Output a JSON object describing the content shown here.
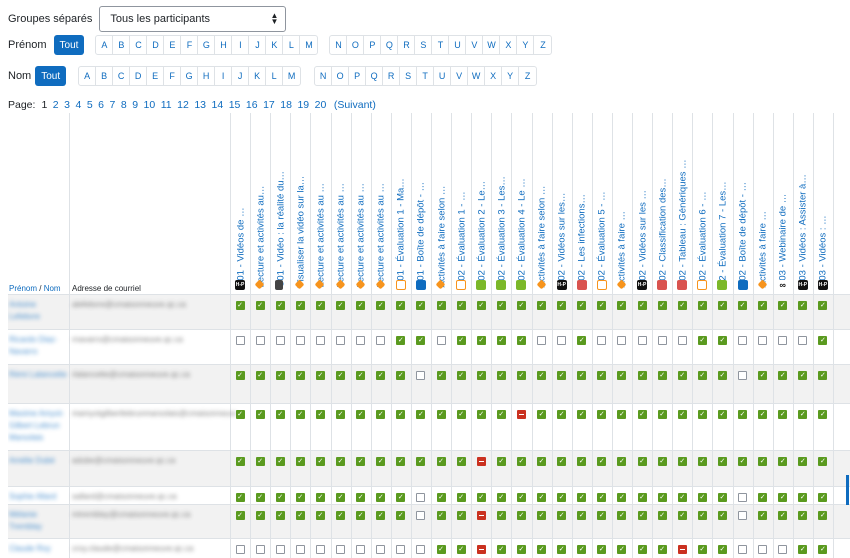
{
  "group": {
    "label": "Groupes séparés",
    "selected": "Tous les participants"
  },
  "firstname_filter": {
    "label": "Prénom",
    "all_label": "Tout",
    "letters_a": [
      "A",
      "B",
      "C",
      "D",
      "E",
      "F",
      "G",
      "H",
      "I",
      "J",
      "K",
      "L",
      "M"
    ],
    "letters_b": [
      "N",
      "O",
      "P",
      "Q",
      "R",
      "S",
      "T",
      "U",
      "V",
      "W",
      "X",
      "Y",
      "Z"
    ]
  },
  "lastname_filter": {
    "label": "Nom",
    "all_label": "Tout",
    "letters_a": [
      "A",
      "B",
      "C",
      "D",
      "E",
      "F",
      "G",
      "H",
      "I",
      "J",
      "K",
      "L",
      "M"
    ],
    "letters_b": [
      "N",
      "O",
      "P",
      "Q",
      "R",
      "S",
      "T",
      "U",
      "V",
      "W",
      "X",
      "Y",
      "Z"
    ]
  },
  "pagination": {
    "label": "Page:",
    "current": "1",
    "pages": [
      "1",
      "2",
      "3",
      "4",
      "5",
      "6",
      "7",
      "8",
      "9",
      "10",
      "11",
      "12",
      "13",
      "14",
      "15",
      "16",
      "17",
      "18",
      "19",
      "20"
    ],
    "next_label": "(Suivant)"
  },
  "table_header": {
    "firstname": "Prénom",
    "separator": " / ",
    "lastname": "Nom",
    "email": "Adresse de courriel"
  },
  "activities": [
    {
      "name": "C01 - Vidéos de …",
      "icon": "h5p-icon"
    },
    {
      "name": "Lecture et activités au…",
      "icon": "tag-icon"
    },
    {
      "name": "C01 - Vidéo : la réalité du…",
      "icon": "page-icon"
    },
    {
      "name": "Visualiser la vidéo sur la…",
      "icon": "tag-icon"
    },
    {
      "name": "Lecture et activités au …",
      "icon": "tag-icon"
    },
    {
      "name": "Lecture et activités au …",
      "icon": "tag-icon"
    },
    {
      "name": "Lecture et activités au …",
      "icon": "tag-icon"
    },
    {
      "name": "Lecture et activités au …",
      "icon": "tag-icon"
    },
    {
      "name": "C01 - Évaluation 1 - Ma…",
      "icon": "quiz-icon"
    },
    {
      "name": "C01 - Boîte de dépôt - …",
      "icon": "assign-icon"
    },
    {
      "name": "Activités à faire selon …",
      "icon": "tag-icon"
    },
    {
      "name": "C02 - Évaluation 1 - …",
      "icon": "quiz-icon"
    },
    {
      "name": "C02 - Évaluation 2 - Le…",
      "icon": "lesson-icon"
    },
    {
      "name": "C02 - Évaluation 3 - Les…",
      "icon": "lesson-icon"
    },
    {
      "name": "C02 - Évaluation 4 - Le …",
      "icon": "lesson-icon"
    },
    {
      "name": "Activités à faire selon …",
      "icon": "tag-icon"
    },
    {
      "name": "C02 - Vidéos sur les…",
      "icon": "h5p-icon"
    },
    {
      "name": "C02 - Les infections…",
      "icon": "database-icon"
    },
    {
      "name": "C02 - Évaluation 5 - …",
      "icon": "quiz-icon"
    },
    {
      "name": "Activités à faire …",
      "icon": "tag-icon"
    },
    {
      "name": "C02 - Vidéos sur les …",
      "icon": "h5p-icon"
    },
    {
      "name": "C02 - Classification des…",
      "icon": "database-icon"
    },
    {
      "name": "C02 - Tableau : Génériques …",
      "icon": "database-icon"
    },
    {
      "name": "C02 - Évaluation 6 - …",
      "icon": "quiz-icon"
    },
    {
      "name": "C2 - Évaluation 7 - Les…",
      "icon": "lesson-icon"
    },
    {
      "name": "C02 - Boîte de dépôt - …",
      "icon": "assign-icon"
    },
    {
      "name": "Activités à faire …",
      "icon": "tag-icon"
    },
    {
      "name": "C03 - Webinaire de …",
      "icon": "url-icon"
    },
    {
      "name": "C03 - Vidéos : Assister à…",
      "icon": "h5p-icon"
    },
    {
      "name": "C03 - Vidéos : …",
      "icon": "h5p-icon"
    }
  ],
  "users": [
    {
      "name": "Antoine Lefebvre",
      "email": "alefebvre@cmaisonneuve.qc.ca",
      "status": "DDDDDDDDDDDDDDDDDDDDDDDDDDDDDD"
    },
    {
      "name": "Ricardo Diaz-Navarro",
      "email": "rnavarro@cmaisonneuve.qc.ca",
      "status": "TTTTTTTTDDTDDDDTTDTTTTTDDTTTTD"
    },
    {
      "name": "Rémi Lalancette",
      "email": "rlalancette@cmaisonneuve.qc.ca",
      "status": "DDDDDDDDDTDDDDDDDDDDDDDDDTDDDD"
    },
    {
      "name": "Maxime Amyot-Gilbert Lebrun Marsolais",
      "email": "mamyotgilbertlebrunmarsolais@cmaisonneuve.qc.ca",
      "status": "DDDDDDDDDDDDDDFDDDDDDDDDDDDDDD"
    },
    {
      "name": "Amélie Dubé",
      "email": "adube@cmaisonneuve.qc.ca",
      "status": "DDDDDDDDDDDDFDDDDDDDDDDDDDDDDD"
    },
    {
      "name": "Sophie Allard",
      "email": "sallard@cmaisonneuve.qc.ca",
      "status": "DDDDDDDDDTDDDDDDDDDDDDDDDTDDDD"
    },
    {
      "name": "Mélanie Tremblay",
      "email": "mtremblay@cmaisonneuve.qc.ca",
      "status": "DDDDDDDDDTDDFDDDDDDDDDDDDTDDDD"
    },
    {
      "name": "Claude Roy",
      "email": "croy.claude@cmaisonneuve.qc.ca",
      "status": "TTTTTTTTTTDDFDDDDDDDDDFDDTTTDD"
    }
  ]
}
